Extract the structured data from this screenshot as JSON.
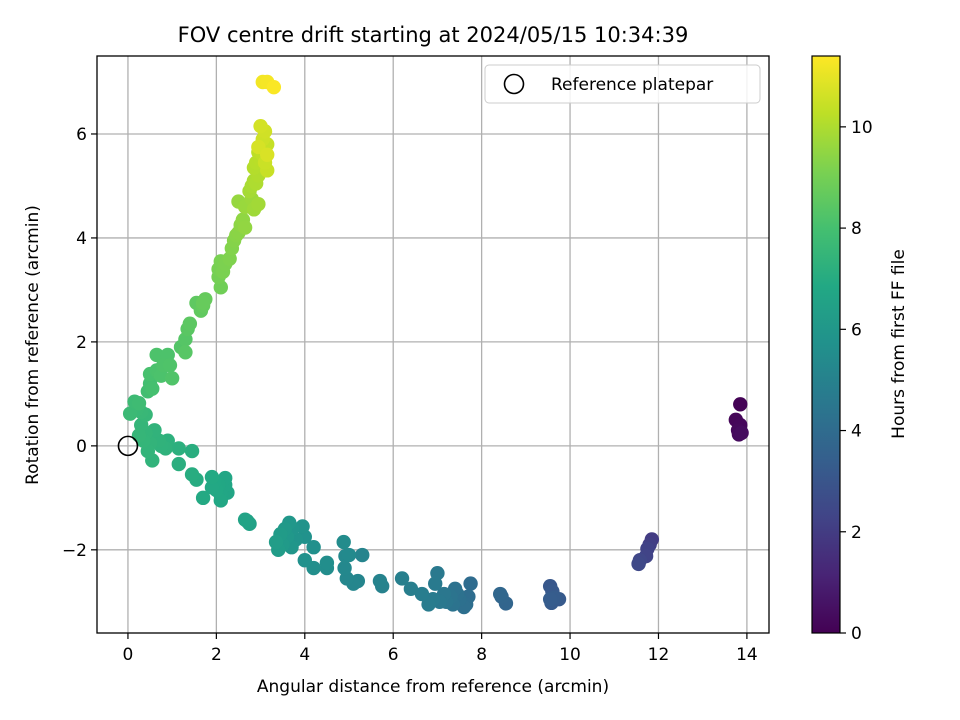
{
  "chart_data": {
    "type": "scatter",
    "title": "FOV centre drift starting at 2024/05/15 10:34:39",
    "xlabel": "Angular distance from reference (arcmin)",
    "ylabel": "Rotation from reference (arcmin)",
    "xlim": [
      -0.7,
      14.5
    ],
    "ylim": [
      -3.6,
      7.5
    ],
    "xticks": [
      0,
      2,
      4,
      6,
      8,
      10,
      12,
      14
    ],
    "yticks": [
      -2,
      0,
      2,
      4,
      6
    ],
    "xtick_labels": [
      "0",
      "2",
      "4",
      "6",
      "8",
      "10",
      "12",
      "14"
    ],
    "ytick_labels": [
      "−2",
      "0",
      "2",
      "4",
      "6"
    ],
    "grid": true,
    "legend": {
      "placement": "upper right",
      "entries": [
        "Reference platepar"
      ]
    },
    "reference_point": {
      "x": 0,
      "y": 0
    },
    "colorbar": {
      "label": "Hours from first FF file",
      "range": [
        0,
        11.4
      ],
      "ticks": [
        0,
        2,
        4,
        6,
        8,
        10
      ],
      "tick_labels": [
        "0",
        "2",
        "4",
        "6",
        "8",
        "10"
      ],
      "colormap": "viridis"
    },
    "points": [
      {
        "x": 13.85,
        "y": 0.8,
        "c": 0.05
      },
      {
        "x": 13.75,
        "y": 0.5,
        "c": 0.15
      },
      {
        "x": 13.85,
        "y": 0.4,
        "c": 0.2
      },
      {
        "x": 13.8,
        "y": 0.3,
        "c": 0.25
      },
      {
        "x": 13.82,
        "y": 0.22,
        "c": 0.3
      },
      {
        "x": 13.88,
        "y": 0.25,
        "c": 0.35
      },
      {
        "x": 11.85,
        "y": -1.8,
        "c": 2.0
      },
      {
        "x": 11.8,
        "y": -1.9,
        "c": 2.1
      },
      {
        "x": 11.75,
        "y": -1.98,
        "c": 2.2
      },
      {
        "x": 11.72,
        "y": -2.12,
        "c": 2.3
      },
      {
        "x": 11.58,
        "y": -2.2,
        "c": 2.4
      },
      {
        "x": 11.55,
        "y": -2.27,
        "c": 2.5
      },
      {
        "x": 9.55,
        "y": -2.7,
        "c": 3.1
      },
      {
        "x": 9.6,
        "y": -2.8,
        "c": 3.15
      },
      {
        "x": 9.75,
        "y": -2.95,
        "c": 3.2
      },
      {
        "x": 9.58,
        "y": -3.02,
        "c": 3.25
      },
      {
        "x": 9.65,
        "y": -2.92,
        "c": 3.3
      },
      {
        "x": 9.55,
        "y": -2.95,
        "c": 3.35
      },
      {
        "x": 8.55,
        "y": -3.03,
        "c": 3.7
      },
      {
        "x": 8.45,
        "y": -2.9,
        "c": 3.75
      },
      {
        "x": 8.42,
        "y": -2.85,
        "c": 3.8
      },
      {
        "x": 7.75,
        "y": -2.65,
        "c": 4.0
      },
      {
        "x": 7.7,
        "y": -2.9,
        "c": 4.05
      },
      {
        "x": 7.65,
        "y": -3.05,
        "c": 4.1
      },
      {
        "x": 7.6,
        "y": -3.1,
        "c": 4.15
      },
      {
        "x": 7.5,
        "y": -2.95,
        "c": 4.2
      },
      {
        "x": 7.45,
        "y": -2.85,
        "c": 4.25
      },
      {
        "x": 7.4,
        "y": -2.75,
        "c": 4.3
      },
      {
        "x": 7.35,
        "y": -3.05,
        "c": 4.35
      },
      {
        "x": 7.3,
        "y": -2.9,
        "c": 4.4
      },
      {
        "x": 7.2,
        "y": -3.0,
        "c": 4.45
      },
      {
        "x": 7.15,
        "y": -2.85,
        "c": 4.5
      },
      {
        "x": 7.05,
        "y": -3.0,
        "c": 4.55
      },
      {
        "x": 7.0,
        "y": -2.45,
        "c": 4.6
      },
      {
        "x": 6.95,
        "y": -2.65,
        "c": 4.65
      },
      {
        "x": 6.9,
        "y": -2.95,
        "c": 4.7
      },
      {
        "x": 6.8,
        "y": -3.05,
        "c": 4.75
      },
      {
        "x": 6.65,
        "y": -2.85,
        "c": 4.8
      },
      {
        "x": 6.4,
        "y": -2.75,
        "c": 4.85
      },
      {
        "x": 6.2,
        "y": -2.55,
        "c": 4.9
      },
      {
        "x": 5.75,
        "y": -2.7,
        "c": 5.0
      },
      {
        "x": 5.7,
        "y": -2.6,
        "c": 5.05
      },
      {
        "x": 5.3,
        "y": -2.1,
        "c": 5.1
      },
      {
        "x": 5.2,
        "y": -2.6,
        "c": 5.15
      },
      {
        "x": 5.1,
        "y": -2.65,
        "c": 5.2
      },
      {
        "x": 4.95,
        "y": -2.55,
        "c": 5.25
      },
      {
        "x": 4.9,
        "y": -2.35,
        "c": 5.3
      },
      {
        "x": 4.92,
        "y": -2.12,
        "c": 5.35
      },
      {
        "x": 5.0,
        "y": -2.1,
        "c": 5.4
      },
      {
        "x": 4.88,
        "y": -1.85,
        "c": 5.45
      },
      {
        "x": 4.5,
        "y": -2.35,
        "c": 5.5
      },
      {
        "x": 4.5,
        "y": -2.25,
        "c": 5.55
      },
      {
        "x": 4.2,
        "y": -2.35,
        "c": 5.6
      },
      {
        "x": 4.2,
        "y": -1.95,
        "c": 5.65
      },
      {
        "x": 4.0,
        "y": -2.2,
        "c": 5.7
      },
      {
        "x": 4.0,
        "y": -1.75,
        "c": 5.75
      },
      {
        "x": 3.95,
        "y": -1.55,
        "c": 5.8
      },
      {
        "x": 3.8,
        "y": -1.8,
        "c": 5.85
      },
      {
        "x": 3.72,
        "y": -1.6,
        "c": 5.9
      },
      {
        "x": 3.7,
        "y": -1.95,
        "c": 5.95
      },
      {
        "x": 3.65,
        "y": -1.48,
        "c": 6.0
      },
      {
        "x": 3.6,
        "y": -1.75,
        "c": 6.05
      },
      {
        "x": 3.55,
        "y": -1.6,
        "c": 6.1
      },
      {
        "x": 3.5,
        "y": -1.9,
        "c": 6.15
      },
      {
        "x": 3.45,
        "y": -1.7,
        "c": 6.2
      },
      {
        "x": 3.4,
        "y": -2.0,
        "c": 6.25
      },
      {
        "x": 3.35,
        "y": -1.85,
        "c": 6.3
      },
      {
        "x": 2.75,
        "y": -1.5,
        "c": 6.5
      },
      {
        "x": 2.7,
        "y": -1.45,
        "c": 6.55
      },
      {
        "x": 2.65,
        "y": -1.42,
        "c": 6.6
      },
      {
        "x": 2.25,
        "y": -0.9,
        "c": 6.7
      },
      {
        "x": 2.2,
        "y": -0.75,
        "c": 6.72
      },
      {
        "x": 2.2,
        "y": -0.62,
        "c": 6.74
      },
      {
        "x": 2.1,
        "y": -0.95,
        "c": 6.76
      },
      {
        "x": 2.1,
        "y": -1.05,
        "c": 6.78
      },
      {
        "x": 2.05,
        "y": -0.75,
        "c": 6.8
      },
      {
        "x": 2.0,
        "y": -0.85,
        "c": 6.82
      },
      {
        "x": 1.95,
        "y": -0.7,
        "c": 6.84
      },
      {
        "x": 1.9,
        "y": -0.8,
        "c": 6.86
      },
      {
        "x": 1.9,
        "y": -0.6,
        "c": 6.88
      },
      {
        "x": 1.7,
        "y": -1.0,
        "c": 6.9
      },
      {
        "x": 1.55,
        "y": -0.65,
        "c": 7.0
      },
      {
        "x": 1.45,
        "y": -0.55,
        "c": 7.05
      },
      {
        "x": 1.45,
        "y": -0.1,
        "c": 7.1
      },
      {
        "x": 1.15,
        "y": -0.35,
        "c": 7.15
      },
      {
        "x": 1.15,
        "y": -0.05,
        "c": 7.2
      },
      {
        "x": 0.9,
        "y": 0.1,
        "c": 7.25
      },
      {
        "x": 0.85,
        "y": -0.05,
        "c": 7.3
      },
      {
        "x": 0.75,
        "y": 0.0,
        "c": 7.32
      },
      {
        "x": 0.7,
        "y": 0.1,
        "c": 7.34
      },
      {
        "x": 0.6,
        "y": 0.3,
        "c": 7.36
      },
      {
        "x": 0.55,
        "y": -0.28,
        "c": 7.38
      },
      {
        "x": 0.5,
        "y": 0.05,
        "c": 7.4
      },
      {
        "x": 0.45,
        "y": -0.1,
        "c": 7.42
      },
      {
        "x": 0.4,
        "y": 0.25,
        "c": 7.44
      },
      {
        "x": 0.35,
        "y": 0.1,
        "c": 7.46
      },
      {
        "x": 0.3,
        "y": 0.4,
        "c": 7.48
      },
      {
        "x": 0.25,
        "y": 0.2,
        "c": 7.5
      },
      {
        "x": 0.4,
        "y": 0.6,
        "c": 7.55
      },
      {
        "x": 0.3,
        "y": 0.65,
        "c": 7.6
      },
      {
        "x": 0.2,
        "y": 0.7,
        "c": 7.65
      },
      {
        "x": 0.05,
        "y": 0.62,
        "c": 7.7
      },
      {
        "x": 0.15,
        "y": 0.85,
        "c": 7.75
      },
      {
        "x": 0.25,
        "y": 0.82,
        "c": 7.8
      },
      {
        "x": 0.45,
        "y": 1.05,
        "c": 7.9
      },
      {
        "x": 0.5,
        "y": 1.2,
        "c": 7.95
      },
      {
        "x": 0.55,
        "y": 1.1,
        "c": 8.0
      },
      {
        "x": 0.5,
        "y": 1.38,
        "c": 8.05
      },
      {
        "x": 0.65,
        "y": 1.45,
        "c": 8.1
      },
      {
        "x": 0.7,
        "y": 1.4,
        "c": 8.12
      },
      {
        "x": 0.75,
        "y": 1.35,
        "c": 8.14
      },
      {
        "x": 0.65,
        "y": 1.75,
        "c": 8.16
      },
      {
        "x": 0.9,
        "y": 1.75,
        "c": 8.18
      },
      {
        "x": 0.8,
        "y": 1.55,
        "c": 8.2
      },
      {
        "x": 0.95,
        "y": 1.55,
        "c": 8.22
      },
      {
        "x": 1.0,
        "y": 1.3,
        "c": 8.24
      },
      {
        "x": 1.2,
        "y": 1.9,
        "c": 8.3
      },
      {
        "x": 1.3,
        "y": 2.05,
        "c": 8.35
      },
      {
        "x": 1.3,
        "y": 1.8,
        "c": 8.4
      },
      {
        "x": 1.35,
        "y": 2.25,
        "c": 8.45
      },
      {
        "x": 1.4,
        "y": 2.35,
        "c": 8.5
      },
      {
        "x": 1.55,
        "y": 2.75,
        "c": 8.55
      },
      {
        "x": 1.65,
        "y": 2.6,
        "c": 8.6
      },
      {
        "x": 1.7,
        "y": 2.7,
        "c": 8.65
      },
      {
        "x": 1.75,
        "y": 2.82,
        "c": 8.7
      },
      {
        "x": 1.7,
        "y": 2.75,
        "c": 8.72
      },
      {
        "x": 2.1,
        "y": 3.05,
        "c": 8.9
      },
      {
        "x": 2.05,
        "y": 3.25,
        "c": 9.0
      },
      {
        "x": 2.05,
        "y": 3.4,
        "c": 9.05
      },
      {
        "x": 2.1,
        "y": 3.55,
        "c": 9.1
      },
      {
        "x": 2.15,
        "y": 3.35,
        "c": 9.12
      },
      {
        "x": 2.2,
        "y": 3.5,
        "c": 9.15
      },
      {
        "x": 2.3,
        "y": 3.6,
        "c": 9.2
      },
      {
        "x": 2.35,
        "y": 3.8,
        "c": 9.25
      },
      {
        "x": 2.4,
        "y": 3.95,
        "c": 9.3
      },
      {
        "x": 2.45,
        "y": 4.05,
        "c": 9.35
      },
      {
        "x": 2.5,
        "y": 4.1,
        "c": 9.4
      },
      {
        "x": 2.55,
        "y": 4.25,
        "c": 9.45
      },
      {
        "x": 2.6,
        "y": 4.35,
        "c": 9.5
      },
      {
        "x": 2.65,
        "y": 4.2,
        "c": 9.52
      },
      {
        "x": 2.5,
        "y": 4.7,
        "c": 9.6
      },
      {
        "x": 2.65,
        "y": 4.6,
        "c": 9.65
      },
      {
        "x": 2.8,
        "y": 4.75,
        "c": 9.7
      },
      {
        "x": 2.85,
        "y": 4.55,
        "c": 9.75
      },
      {
        "x": 2.95,
        "y": 4.65,
        "c": 9.8
      },
      {
        "x": 2.75,
        "y": 4.9,
        "c": 9.85
      },
      {
        "x": 2.8,
        "y": 5.0,
        "c": 9.9
      },
      {
        "x": 2.85,
        "y": 5.1,
        "c": 9.95
      },
      {
        "x": 2.9,
        "y": 5.05,
        "c": 10.0
      },
      {
        "x": 2.95,
        "y": 5.2,
        "c": 10.05
      },
      {
        "x": 2.85,
        "y": 5.35,
        "c": 10.1
      },
      {
        "x": 2.9,
        "y": 5.45,
        "c": 10.15
      },
      {
        "x": 3.0,
        "y": 5.5,
        "c": 10.2
      },
      {
        "x": 2.95,
        "y": 5.65,
        "c": 10.25
      },
      {
        "x": 3.05,
        "y": 5.6,
        "c": 10.3
      },
      {
        "x": 3.1,
        "y": 5.75,
        "c": 10.35
      },
      {
        "x": 3.15,
        "y": 5.8,
        "c": 10.4
      },
      {
        "x": 3.15,
        "y": 5.3,
        "c": 10.45
      },
      {
        "x": 3.1,
        "y": 5.45,
        "c": 10.5
      },
      {
        "x": 3.05,
        "y": 5.9,
        "c": 10.55
      },
      {
        "x": 3.1,
        "y": 6.05,
        "c": 10.6
      },
      {
        "x": 3.0,
        "y": 6.15,
        "c": 10.65
      },
      {
        "x": 2.95,
        "y": 5.75,
        "c": 10.7
      },
      {
        "x": 3.15,
        "y": 5.6,
        "c": 10.75
      },
      {
        "x": 3.05,
        "y": 7.0,
        "c": 11.2
      },
      {
        "x": 3.15,
        "y": 7.0,
        "c": 11.25
      },
      {
        "x": 3.3,
        "y": 6.9,
        "c": 11.35
      }
    ]
  }
}
